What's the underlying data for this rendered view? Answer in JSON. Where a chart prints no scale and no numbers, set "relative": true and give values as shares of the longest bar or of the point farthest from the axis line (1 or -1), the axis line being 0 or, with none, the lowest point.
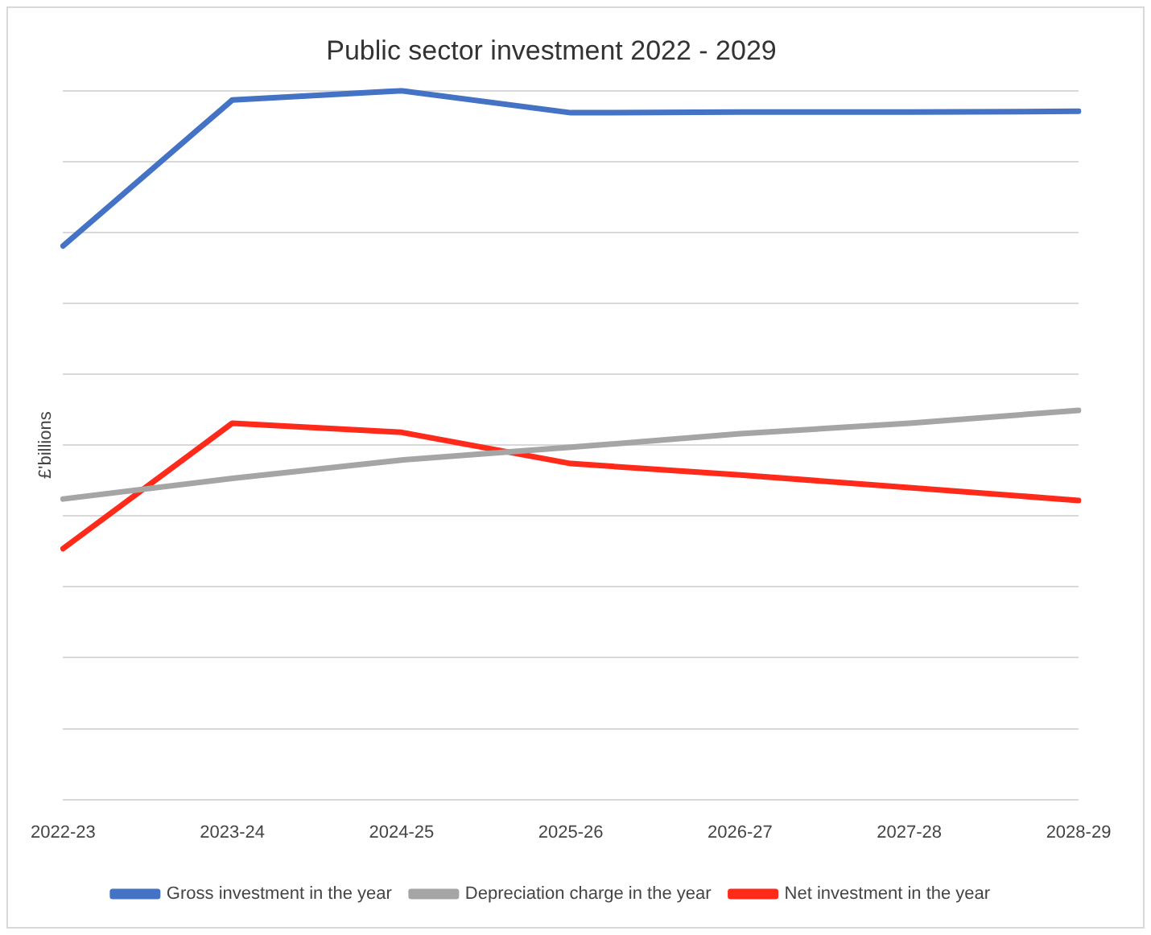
{
  "chart_data": {
    "type": "line",
    "title": "Public sector investment 2022 - 2029",
    "ylabel": "£'billions",
    "relative": true,
    "grid": "y",
    "legend": "bottom",
    "marker": "none",
    "line_style": "solid",
    "categories": [
      "2022-23",
      "2023-24",
      "2024-25",
      "2025-26",
      "2026-27",
      "2027-28",
      "2028-29"
    ],
    "series": [
      {
        "name": "Gross investment in the year",
        "color": "#4472c4",
        "values": [
          0.781,
          0.987,
          1.0,
          0.969,
          0.97,
          0.97,
          0.971
        ]
      },
      {
        "name": "Depreciation charge in the year",
        "color": "#a5a5a5",
        "values": [
          0.424,
          0.453,
          0.479,
          0.497,
          0.516,
          0.531,
          0.549
        ]
      },
      {
        "name": "Net investment in the year",
        "color": "#ff2a1a",
        "values": [
          0.354,
          0.531,
          0.518,
          0.474,
          0.458,
          0.44,
          0.422
        ]
      }
    ]
  }
}
